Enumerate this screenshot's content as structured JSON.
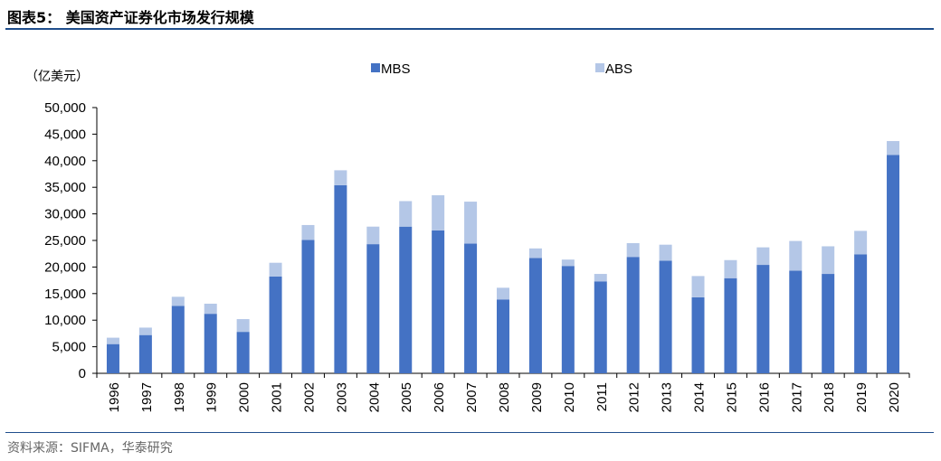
{
  "chart_data": {
    "type": "bar",
    "stacked": true,
    "title": "图表5： 美国资产证券化市场发行规模",
    "ylabel": "（亿美元）",
    "xlabel": "",
    "ylim": [
      0,
      50000
    ],
    "yticks": [
      "0",
      "5,000",
      "10,000",
      "15,000",
      "20,000",
      "25,000",
      "30,000",
      "35,000",
      "40,000",
      "45,000",
      "50,000"
    ],
    "legend_position": "top-center",
    "categories": [
      "1996",
      "1997",
      "1998",
      "1999",
      "2000",
      "2001",
      "2002",
      "2003",
      "2004",
      "2005",
      "2006",
      "2007",
      "2008",
      "2009",
      "2010",
      "2011",
      "2012",
      "2013",
      "2014",
      "2015",
      "2016",
      "2017",
      "2018",
      "2019",
      "2020"
    ],
    "series": [
      {
        "name": "MBS",
        "color": "#4472c4",
        "values": [
          5500,
          7200,
          12700,
          11200,
          7800,
          18200,
          25100,
          35400,
          24300,
          27600,
          26900,
          24400,
          13900,
          21700,
          20200,
          17300,
          21900,
          21200,
          14300,
          17900,
          20400,
          19300,
          18700,
          22400,
          41100
        ]
      },
      {
        "name": "ABS",
        "color": "#b4c7e7",
        "values": [
          1200,
          1400,
          1700,
          1900,
          2400,
          2600,
          2800,
          2800,
          3300,
          4800,
          6600,
          7900,
          2200,
          1800,
          1200,
          1400,
          2600,
          3000,
          4000,
          3400,
          3300,
          5600,
          5200,
          4400,
          2600
        ]
      }
    ],
    "source": "资料来源：SIFMA，华泰研究"
  }
}
